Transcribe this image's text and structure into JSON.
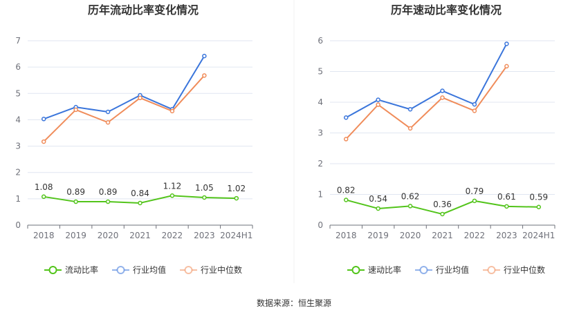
{
  "chart_data": [
    {
      "type": "line",
      "title": "历年流动比率变化情况",
      "categories": [
        "2018",
        "2019",
        "2020",
        "2021",
        "2022",
        "2023",
        "2024H1"
      ],
      "ylim": [
        0,
        7
      ],
      "yticks": [
        "0",
        "1",
        "2",
        "3",
        "4",
        "5",
        "6",
        "7"
      ],
      "grid": true,
      "legend_position": "bottom",
      "series": [
        {
          "name": "流动比率",
          "color": "#52c41a",
          "values": [
            1.08,
            0.89,
            0.89,
            0.84,
            1.12,
            1.05,
            1.02
          ],
          "labels": [
            "1.08",
            "0.89",
            "0.89",
            "0.84",
            "1.12",
            "1.05",
            "1.02"
          ]
        },
        {
          "name": "行业均值",
          "color": "#3a75db",
          "values": [
            4.03,
            4.48,
            4.3,
            4.93,
            4.4,
            6.42,
            null
          ]
        },
        {
          "name": "行业中位数",
          "color": "#f08c5a",
          "values": [
            3.17,
            4.38,
            3.9,
            4.83,
            4.33,
            5.68,
            null
          ]
        }
      ]
    },
    {
      "type": "line",
      "title": "历年速动比率变化情况",
      "categories": [
        "2018",
        "2019",
        "2020",
        "2021",
        "2022",
        "2023",
        "2024H1"
      ],
      "ylim": [
        0,
        6
      ],
      "yticks": [
        "0",
        "1",
        "2",
        "3",
        "4",
        "5",
        "6"
      ],
      "grid": true,
      "legend_position": "bottom",
      "series": [
        {
          "name": "速动比率",
          "color": "#52c41a",
          "values": [
            0.82,
            0.54,
            0.62,
            0.36,
            0.79,
            0.61,
            0.59
          ],
          "labels": [
            "0.82",
            "0.54",
            "0.62",
            "0.36",
            "0.79",
            "0.61",
            "0.59"
          ]
        },
        {
          "name": "行业均值",
          "color": "#3a75db",
          "values": [
            3.5,
            4.08,
            3.77,
            4.37,
            3.93,
            5.9,
            null
          ]
        },
        {
          "name": "行业中位数",
          "color": "#f08c5a",
          "values": [
            2.8,
            3.92,
            3.15,
            4.15,
            3.72,
            5.17,
            null
          ]
        }
      ]
    }
  ],
  "footer": "数据来源：恒生聚源"
}
